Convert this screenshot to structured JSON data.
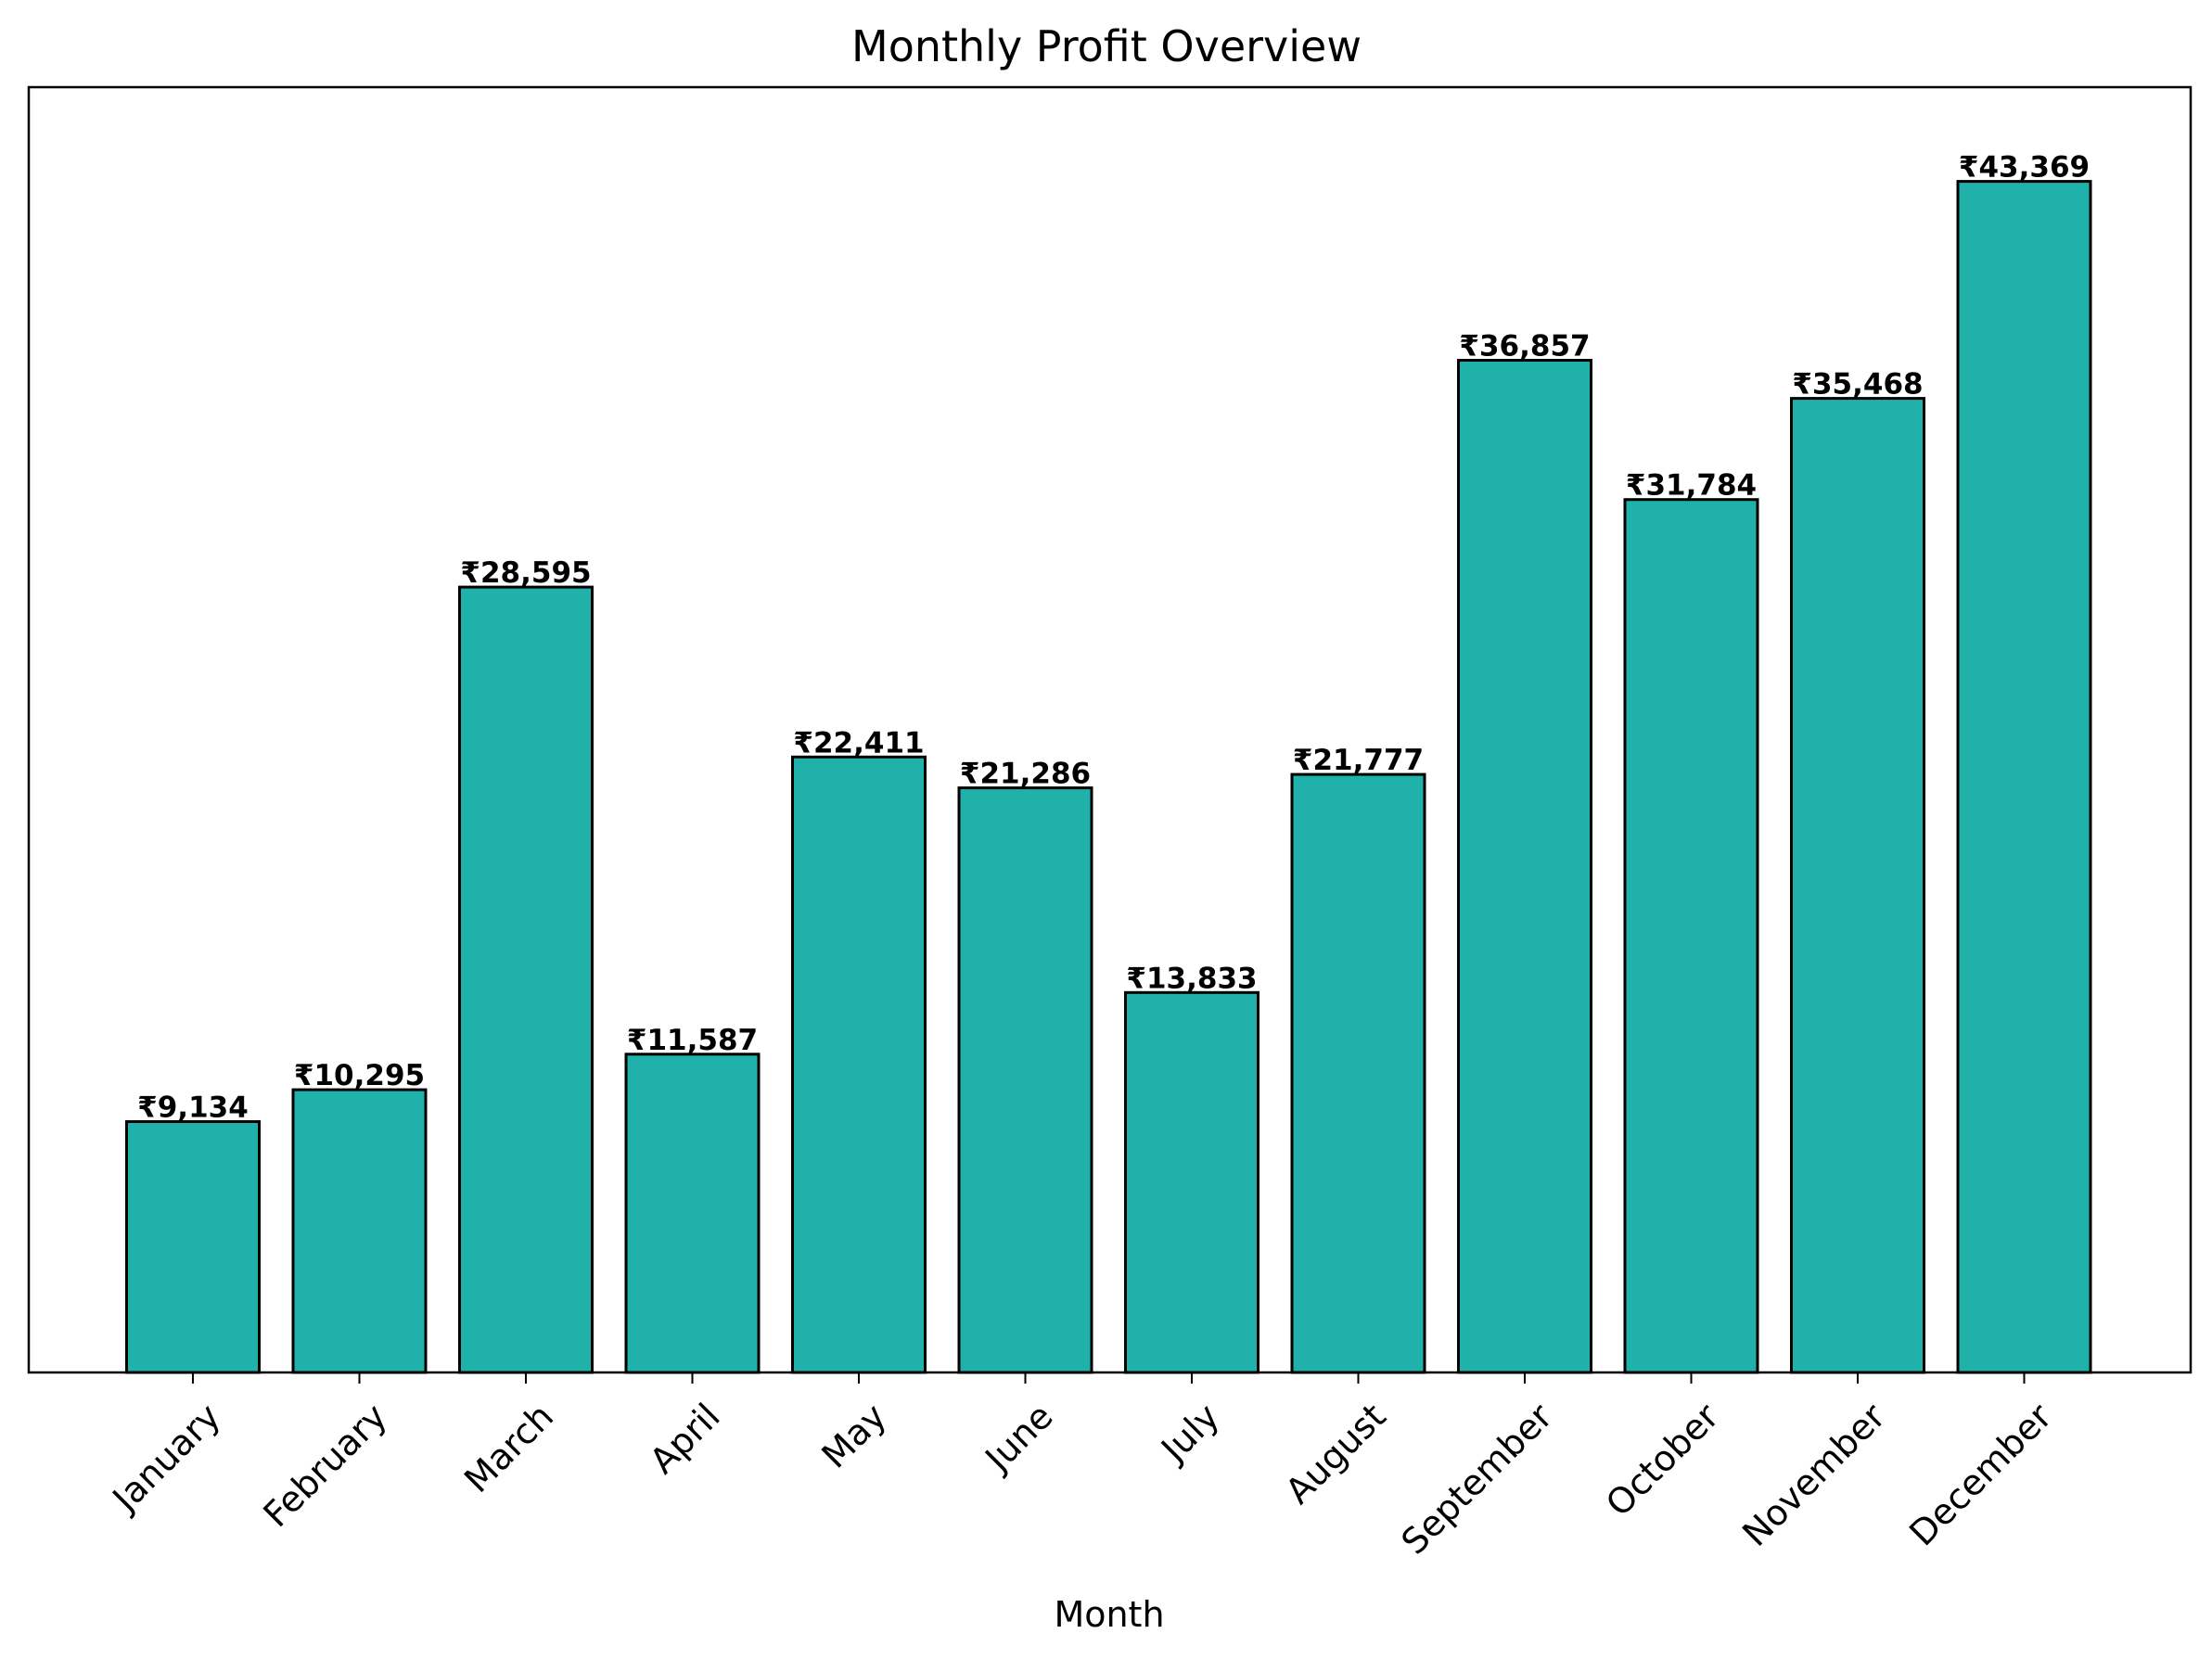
{
  "chart_data": {
    "type": "bar",
    "title": "Monthly Profit Overview",
    "xlabel": "Month",
    "ylabel": "",
    "categories": [
      "January",
      "February",
      "March",
      "April",
      "May",
      "June",
      "July",
      "August",
      "September",
      "October",
      "November",
      "December"
    ],
    "values": [
      9134,
      10295,
      28595,
      11587,
      22411,
      21286,
      13833,
      21777,
      36857,
      31784,
      35468,
      43369
    ],
    "value_labels": [
      "₹9,134",
      "₹10,295",
      "₹28,595",
      "₹11,587",
      "₹22,411",
      "₹21,286",
      "₹13,833",
      "₹21,777",
      "₹36,857",
      "₹31,784",
      "₹35,468",
      "₹43,369"
    ],
    "ylim": [
      0,
      46800
    ],
    "grid": false,
    "y_ticks_visible": false,
    "tick_label_rotation": 45,
    "bar_color": "#20b2aa",
    "bar_edge_color": "#000000"
  }
}
